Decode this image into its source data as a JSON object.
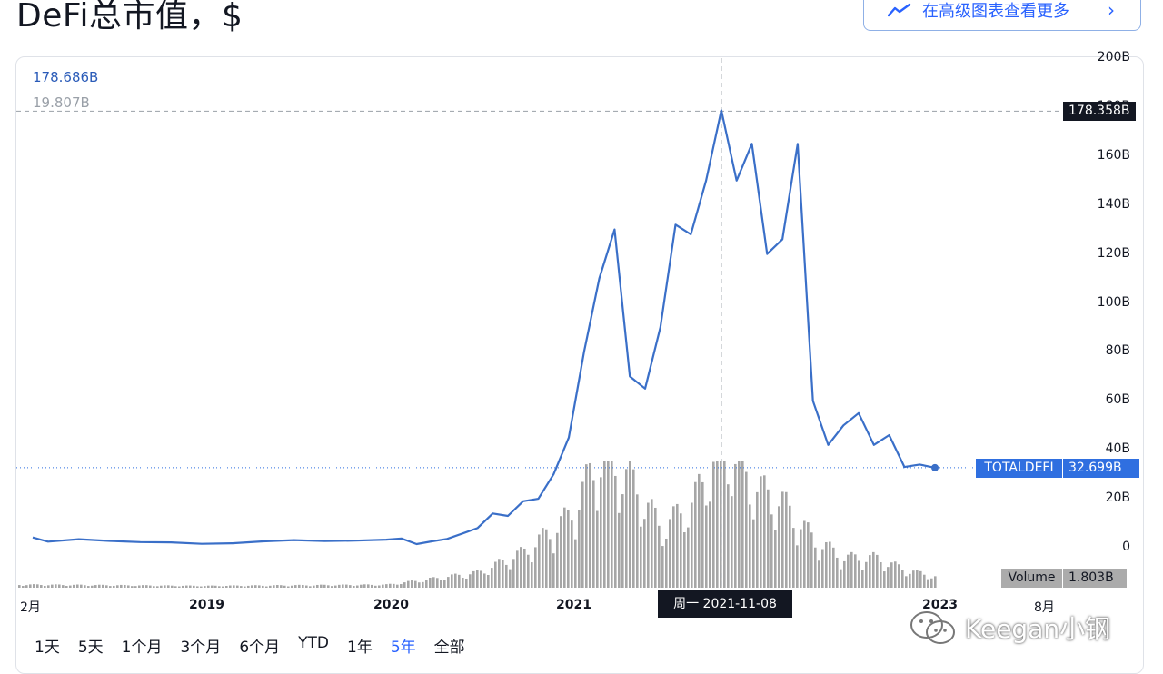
{
  "title": "DeFi总市值，$",
  "advanced_button": {
    "label": "在高级图表查看更多",
    "icon": "chart-line-icon",
    "chevron": "›"
  },
  "crosshair": {
    "value": "178.686B",
    "secondary": "19.807B",
    "price_tag": "178.358B",
    "date_tip": "周一  2021-11-08"
  },
  "last": {
    "symbol": "TOTALDEFI",
    "value": "32.699B"
  },
  "volume": {
    "label": "Volume",
    "value": "1.803B"
  },
  "colors": {
    "line": "#3a6fc8",
    "volume": "#a6a6a6",
    "tag_blue": "#2f6fe0",
    "tag_dark": "#131722"
  },
  "y_ticks": [
    "200B",
    "180B",
    "160B",
    "140B",
    "120B",
    "100B",
    "80B",
    "60B",
    "40B",
    "20B",
    "0"
  ],
  "x_ticks": [
    {
      "label": "2月",
      "bold": false
    },
    {
      "label": "2019",
      "bold": true
    },
    {
      "label": "2020",
      "bold": true
    },
    {
      "label": "2021",
      "bold": true
    },
    {
      "label": "2023",
      "bold": true
    },
    {
      "label": "8月",
      "bold": false
    }
  ],
  "ranges": [
    {
      "label": "1天",
      "active": false
    },
    {
      "label": "5天",
      "active": false
    },
    {
      "label": "1个月",
      "active": false
    },
    {
      "label": "3个月",
      "active": false
    },
    {
      "label": "6个月",
      "active": false
    },
    {
      "label": "YTD",
      "active": false
    },
    {
      "label": "1年",
      "active": false
    },
    {
      "label": "5年",
      "active": true
    },
    {
      "label": "全部",
      "active": false
    }
  ],
  "watermark": "Keegan小钢",
  "chart_data": {
    "type": "line",
    "title": "DeFi总市值，$",
    "ylim": [
      0,
      200
    ],
    "y_unit": "B",
    "x_start": "2018-02",
    "x_end": "2023-08",
    "series": [
      {
        "name": "TOTALDEFI",
        "x": [
          "2018-02",
          "2018-03",
          "2018-05",
          "2018-07",
          "2018-09",
          "2018-11",
          "2019-01",
          "2019-03",
          "2019-05",
          "2019-07",
          "2019-09",
          "2019-11",
          "2020-01",
          "2020-02",
          "2020-03",
          "2020-04",
          "2020-05",
          "2020-06",
          "2020-07",
          "2020-08",
          "2020-09",
          "2020-10",
          "2020-11",
          "2020-12",
          "2021-01",
          "2021-02",
          "2021-03",
          "2021-04",
          "2021-05",
          "2021-06",
          "2021-07",
          "2021-08",
          "2021-09",
          "2021-10",
          "2021-11",
          "2021-12",
          "2022-01",
          "2022-02",
          "2022-03",
          "2022-04",
          "2022-05",
          "2022-06",
          "2022-07",
          "2022-08",
          "2022-09",
          "2022-10",
          "2022-11",
          "2022-12",
          "2023-01"
        ],
        "values": [
          4.2,
          2.5,
          3.5,
          2.8,
          2.3,
          2.2,
          1.6,
          1.8,
          2.6,
          3.1,
          2.7,
          2.9,
          3.3,
          3.8,
          1.5,
          2.6,
          3.6,
          5.8,
          8,
          14,
          13,
          19,
          20,
          30,
          45,
          80,
          110,
          130,
          70,
          65,
          90,
          132,
          128,
          150,
          178.7,
          150,
          165,
          120,
          126,
          165,
          60,
          42,
          50,
          55,
          42,
          46,
          33,
          34,
          32.7
        ]
      },
      {
        "name": "Volume",
        "note": "relative volume bars",
        "x": [
          "2018-02",
          "2019-01",
          "2020-01",
          "2020-07",
          "2020-10",
          "2021-01",
          "2021-03",
          "2021-05",
          "2021-07",
          "2021-09",
          "2021-11",
          "2022-01",
          "2022-03",
          "2022-05",
          "2022-07",
          "2022-09",
          "2022-11",
          "2023-01"
        ],
        "values": [
          0.5,
          0.3,
          0.5,
          2.5,
          6,
          12,
          22,
          18,
          10,
          14,
          24,
          17,
          14,
          8,
          5,
          5,
          3,
          1.8
        ]
      }
    ]
  }
}
